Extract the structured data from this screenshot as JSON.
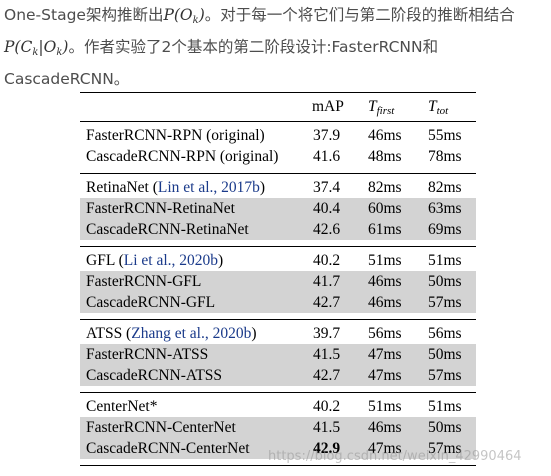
{
  "intro": {
    "text1": "One-Stage架构推断出",
    "math1_base": "P(O",
    "math1_sub": "k",
    "math1_close": ")",
    "text2": "。对于每一个将它们与第二阶段的推断相结合",
    "math2_base": "P(C",
    "math2_sub": "k",
    "math2_mid": "|O",
    "math2_sub2": "k",
    "math2_close": ")",
    "text3": "。作者实验了2个基本的第二阶段设计:FasterRCNN和CascadeRCNN。"
  },
  "table": {
    "headers": {
      "map": "mAP",
      "tfirst_base": "T",
      "tfirst_sub": "first",
      "ttot_base": "T",
      "ttot_sub": "tot"
    },
    "groups": [
      {
        "rows": [
          {
            "name": "FasterRCNN-RPN (original)",
            "map": "37.9",
            "tfirst": "46ms",
            "ttot": "55ms"
          },
          {
            "name": "CascadeRCNN-RPN (original)",
            "map": "41.6",
            "tfirst": "48ms",
            "ttot": "78ms"
          }
        ]
      },
      {
        "base_name": "RetinaNet (",
        "base_cite": "Lin et al., 2017b",
        "base_close": ")",
        "base_map": "37.4",
        "base_tfirst": "82ms",
        "base_ttot": "82ms",
        "rows": [
          {
            "name": "FasterRCNN-RetinaNet",
            "map": "40.4",
            "tfirst": "60ms",
            "ttot": "63ms"
          },
          {
            "name": "CascadeRCNN-RetinaNet",
            "map": "42.6",
            "tfirst": "61ms",
            "ttot": "69ms"
          }
        ]
      },
      {
        "base_name": "GFL (",
        "base_cite": "Li et al., 2020b",
        "base_close": ")",
        "base_map": "40.2",
        "base_tfirst": "51ms",
        "base_ttot": "51ms",
        "rows": [
          {
            "name": "FasterRCNN-GFL",
            "map": "41.7",
            "tfirst": "46ms",
            "ttot": "50ms"
          },
          {
            "name": "CascadeRCNN-GFL",
            "map": "42.7",
            "tfirst": "46ms",
            "ttot": "57ms"
          }
        ]
      },
      {
        "base_name": "ATSS (",
        "base_cite": "Zhang et al., 2020b",
        "base_close": ")",
        "base_map": "39.7",
        "base_tfirst": "56ms",
        "base_ttot": "56ms",
        "rows": [
          {
            "name": "FasterRCNN-ATSS",
            "map": "41.5",
            "tfirst": "47ms",
            "ttot": "50ms"
          },
          {
            "name": "CascadeRCNN-ATSS",
            "map": "42.7",
            "tfirst": "47ms",
            "ttot": "57ms"
          }
        ]
      },
      {
        "base_name": "CenterNet*",
        "base_cite": "",
        "base_close": "",
        "base_map": "40.2",
        "base_tfirst": "51ms",
        "base_ttot": "51ms",
        "rows": [
          {
            "name": "FasterRCNN-CenterNet",
            "map": "41.5",
            "tfirst": "46ms",
            "ttot": "50ms"
          },
          {
            "name": "CascadeRCNN-CenterNet",
            "map": "42.9",
            "tfirst": "47ms",
            "ttot": "57ms"
          }
        ]
      }
    ]
  },
  "watermark": "https://blog.csdn.net/weixin_42990464"
}
